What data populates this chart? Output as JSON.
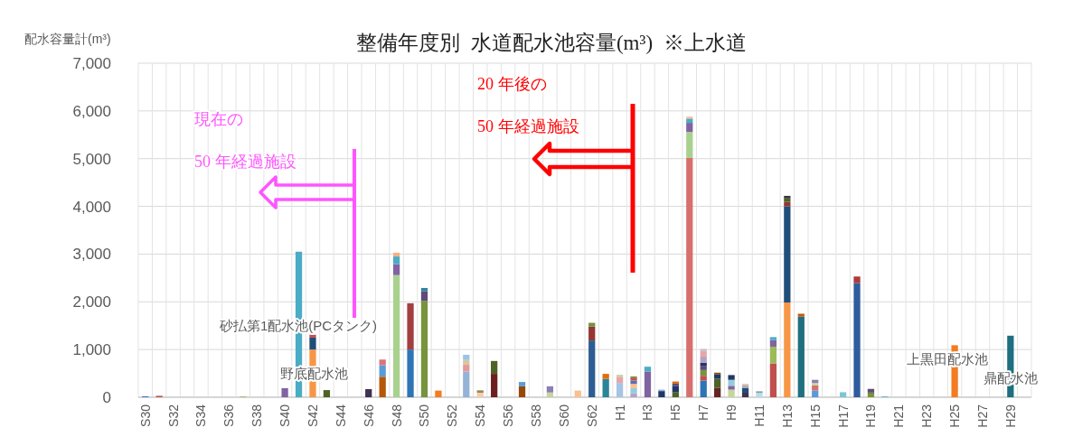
{
  "chart_data": {
    "type": "bar",
    "stacked": true,
    "title": "整備年度別  水道配水池容量(m³)  ※上水道",
    "ylabel": "配水容量計(m³)",
    "categories": [
      "S30",
      null,
      "S32",
      null,
      "S34",
      null,
      "S36",
      null,
      "S38",
      null,
      "S40",
      null,
      "S42",
      null,
      "S44",
      null,
      "S46",
      null,
      "S48",
      null,
      "S50",
      null,
      "S52",
      null,
      "S54",
      null,
      "S56",
      null,
      "S58",
      null,
      "S60",
      null,
      "S62",
      null,
      "H1",
      null,
      "H3",
      null,
      "H5",
      null,
      "H7",
      null,
      "H9",
      null,
      "H11",
      null,
      "H13",
      null,
      "H15",
      null,
      "H17",
      null,
      "H19",
      null,
      "H21",
      null,
      "H23",
      null,
      "H25",
      null,
      "H27",
      null,
      "H29",
      null
    ],
    "ylim": [
      0,
      7000
    ],
    "yticks": [
      0,
      {
        "value": 1000,
        "label": "1,000"
      },
      {
        "value": 2000,
        "label": "2,000"
      },
      {
        "value": 3000,
        "label": "3,000"
      },
      {
        "value": 4000,
        "label": "4,000"
      },
      {
        "value": 5000,
        "label": "5,000"
      },
      {
        "value": 6000,
        "label": "6,000"
      },
      {
        "value": 7000,
        "label": "7,000"
      }
    ],
    "grid": true,
    "series": [
      {
        "values": [
          20,
          30,
          null,
          null,
          null,
          null,
          null,
          15,
          null,
          null,
          190,
          3050,
          1000,
          150,
          null,
          null,
          170,
          430,
          2560,
          1000,
          2020,
          140,
          null,
          540,
          95,
          490,
          null,
          230,
          null,
          100,
          null,
          140,
          1190,
          385,
          300,
          80,
          540,
          130,
          110,
          5015,
          350,
          200,
          160,
          95,
          90,
          710,
          1985,
          1690,
          145,
          null,
          105,
          2395,
          80,
          15,
          null,
          null,
          null,
          null,
          1090,
          null,
          null,
          null,
          1290,
          null
        ],
        "colors": [
          "#4472c4",
          "#c0504d",
          null,
          null,
          null,
          null,
          null,
          "#9bbb59",
          null,
          null,
          "#8064a2",
          "#4bacc6",
          "#f79646",
          "#4f6228",
          null,
          null,
          "#3f3151",
          "#b65708",
          "#a9d18e",
          "#2e75b6",
          "#77933c",
          "#f47b20",
          null,
          "#95b3d7",
          "#f8cbad",
          "#6d1f1f",
          null,
          "#974806",
          null,
          "#c3d69b",
          null,
          "#fac090",
          "#2e5c93",
          "#2b8599",
          "#a6c4e4",
          "#b3a2c7",
          "#8064a2",
          "#1f3864",
          "#4f6228",
          "#d7706c",
          "#2e75b6",
          "#632523",
          "#c3d69b",
          "#3f3151",
          "#b7dee8",
          "#c0504d",
          "#f79646",
          "#1f6f80",
          "#5b9bd5",
          null,
          "#78c8d2",
          "#2e5c9e",
          "#77933c",
          "#4bacc6",
          null,
          null,
          null,
          null,
          "#f47b20",
          null,
          null,
          null,
          "#1f6f80",
          null
        ]
      },
      {
        "values": [
          null,
          null,
          null,
          null,
          null,
          null,
          null,
          null,
          null,
          null,
          null,
          null,
          250,
          null,
          null,
          null,
          null,
          240,
          230,
          970,
          200,
          null,
          null,
          140,
          50,
          270,
          null,
          90,
          null,
          130,
          null,
          null,
          290,
          105,
          130,
          110,
          100,
          30,
          130,
          545,
          100,
          190,
          80,
          95,
          35,
          350,
          2015,
          60,
          105,
          null,
          null,
          135,
          30,
          null,
          null,
          null,
          null,
          null,
          null,
          null,
          null,
          null,
          null,
          null
        ],
        "colors": [
          null,
          null,
          null,
          null,
          null,
          null,
          null,
          null,
          null,
          null,
          null,
          null,
          "#1f4e79",
          null,
          null,
          null,
          null,
          "#5b9bd5",
          "#8064a2",
          "#a33f3f",
          "#604a7b",
          null,
          null,
          "#e6999a",
          "#948a54",
          "#4f6228",
          null,
          "#5b9bd5",
          null,
          "#8c7fb5",
          null,
          null,
          "#943634",
          "#e46c0a",
          "#e6a7a8",
          "#93cddd",
          "#4bacc6",
          "#8eb4e3",
          "#1f3864",
          "#a9d18e",
          "#c0504d",
          "#4f6228",
          "#8064a2",
          "#1f4e79",
          "#8c9ba8",
          "#9bbb59",
          "#1f4e79",
          "#c55a11",
          "#d7706c",
          null,
          null,
          "#b03a3a",
          "#4f6228",
          null,
          null,
          null,
          null,
          null,
          null,
          null,
          null,
          null,
          null,
          null
        ]
      },
      {
        "values": [
          null,
          null,
          null,
          null,
          null,
          null,
          null,
          null,
          null,
          null,
          null,
          null,
          60,
          null,
          null,
          null,
          null,
          120,
          160,
          null,
          70,
          null,
          null,
          100,
          null,
          null,
          null,
          null,
          null,
          null,
          null,
          null,
          80,
          null,
          40,
          90,
          null,
          null,
          45,
          190,
          120,
          95,
          125,
          55,
          null,
          140,
          95,
          null,
          50,
          null,
          null,
          null,
          65,
          null,
          null,
          null,
          null,
          null,
          null,
          null,
          null,
          null,
          null,
          null
        ],
        "colors": [
          null,
          null,
          null,
          null,
          null,
          null,
          null,
          null,
          null,
          null,
          null,
          null,
          "#c0504d",
          null,
          null,
          null,
          null,
          "#d9757b",
          "#4bacc6",
          null,
          "#31859c",
          null,
          null,
          "#d7c7a0",
          null,
          null,
          null,
          null,
          null,
          null,
          null,
          null,
          "#76923c",
          null,
          "#c3d69b",
          "#fac090",
          null,
          null,
          "#604a7b",
          "#8064a2",
          "#77933c",
          "#1f3864",
          "#93cddd",
          "#b3a2c7",
          null,
          "#8064a2",
          "#943634",
          null,
          "#c3d69b",
          null,
          null,
          null,
          "#604a7b",
          null,
          null,
          null,
          null,
          null,
          null,
          null,
          null,
          null,
          null,
          null
        ]
      },
      {
        "values": [
          null,
          null,
          null,
          null,
          null,
          null,
          null,
          null,
          null,
          null,
          null,
          null,
          null,
          null,
          null,
          null,
          null,
          null,
          80,
          null,
          null,
          null,
          null,
          110,
          null,
          null,
          null,
          null,
          null,
          null,
          null,
          null,
          null,
          null,
          null,
          70,
          null,
          null,
          45,
          90,
          90,
          30,
          100,
          35,
          null,
          60,
          85,
          null,
          65,
          null,
          null,
          null,
          null,
          null,
          null,
          null,
          null,
          null,
          null,
          null,
          null,
          null,
          null,
          null
        ],
        "colors": [
          null,
          null,
          null,
          null,
          null,
          null,
          null,
          null,
          null,
          null,
          null,
          null,
          null,
          null,
          null,
          null,
          null,
          null,
          "#f4b183",
          null,
          null,
          null,
          null,
          "#9dc3e6",
          null,
          null,
          null,
          null,
          null,
          null,
          null,
          null,
          null,
          null,
          null,
          "#5b6fb5",
          null,
          null,
          "#e46c0a",
          "#4bacc6",
          "#604a7b",
          "#974806",
          "#1f3864",
          "#d7c7a0",
          null,
          "#4bacc6",
          "#4f6228",
          null,
          "#8c7fb5",
          null,
          null,
          null,
          null,
          null,
          null,
          null,
          null,
          null,
          null,
          null,
          null,
          null,
          null,
          null
        ]
      },
      {
        "values": [
          null,
          null,
          null,
          null,
          null,
          null,
          null,
          null,
          null,
          null,
          null,
          null,
          null,
          null,
          null,
          null,
          null,
          null,
          null,
          null,
          null,
          null,
          null,
          null,
          null,
          null,
          null,
          null,
          null,
          null,
          null,
          null,
          null,
          null,
          null,
          50,
          null,
          null,
          null,
          40,
          65,
          null,
          null,
          null,
          null,
          null,
          40,
          null,
          null,
          null,
          null,
          null,
          null,
          null,
          null,
          null,
          null,
          null,
          null,
          null,
          null,
          null,
          null,
          null
        ],
        "colors": [
          null,
          null,
          null,
          null,
          null,
          null,
          null,
          null,
          null,
          null,
          null,
          null,
          null,
          null,
          null,
          null,
          null,
          null,
          null,
          null,
          null,
          null,
          null,
          null,
          null,
          null,
          null,
          null,
          null,
          null,
          null,
          null,
          null,
          null,
          null,
          "#c0504d",
          null,
          null,
          null,
          "#fac090",
          "#1f3864",
          null,
          null,
          null,
          null,
          null,
          "#3f3151",
          null,
          null,
          null,
          null,
          null,
          null,
          null,
          null,
          null,
          null,
          null,
          null,
          null,
          null,
          null,
          null,
          null
        ]
      },
      {
        "values": [
          null,
          null,
          null,
          null,
          null,
          null,
          null,
          null,
          null,
          null,
          null,
          null,
          null,
          null,
          null,
          null,
          null,
          null,
          null,
          null,
          null,
          null,
          null,
          null,
          null,
          null,
          null,
          null,
          null,
          null,
          null,
          null,
          null,
          null,
          null,
          35,
          null,
          null,
          null,
          null,
          125,
          null,
          null,
          null,
          null,
          null,
          null,
          null,
          null,
          null,
          null,
          null,
          null,
          null,
          null,
          null,
          null,
          null,
          null,
          null,
          null,
          null,
          null,
          null
        ],
        "colors": [
          null,
          null,
          null,
          null,
          null,
          null,
          null,
          null,
          null,
          null,
          null,
          null,
          null,
          null,
          null,
          null,
          null,
          null,
          null,
          null,
          null,
          null,
          null,
          null,
          null,
          null,
          null,
          null,
          null,
          null,
          null,
          null,
          null,
          null,
          null,
          "#7f7f3f",
          null,
          null,
          null,
          null,
          "#b3a2c7",
          null,
          null,
          null,
          null,
          null,
          null,
          null,
          null,
          null,
          null,
          null,
          null,
          null,
          null,
          null,
          null,
          null,
          null,
          null,
          null,
          null,
          null,
          null
        ]
      },
      {
        "values": [
          null,
          null,
          null,
          null,
          null,
          null,
          null,
          null,
          null,
          null,
          null,
          null,
          null,
          null,
          null,
          null,
          null,
          null,
          null,
          null,
          null,
          null,
          null,
          null,
          null,
          null,
          null,
          null,
          null,
          null,
          null,
          null,
          null,
          null,
          null,
          null,
          null,
          null,
          null,
          null,
          125,
          null,
          null,
          null,
          null,
          null,
          null,
          null,
          null,
          null,
          null,
          null,
          null,
          null,
          null,
          null,
          null,
          null,
          null,
          null,
          null,
          null,
          null,
          null
        ],
        "colors": [
          null,
          null,
          null,
          null,
          null,
          null,
          null,
          null,
          null,
          null,
          null,
          null,
          null,
          null,
          null,
          null,
          null,
          null,
          null,
          null,
          null,
          null,
          null,
          null,
          null,
          null,
          null,
          null,
          null,
          null,
          null,
          null,
          null,
          null,
          null,
          null,
          null,
          null,
          null,
          null,
          "#e6a7a8",
          null,
          null,
          null,
          null,
          null,
          null,
          null,
          null,
          null,
          null,
          null,
          null,
          null,
          null,
          null,
          null,
          null,
          null,
          null,
          null,
          null,
          null,
          null
        ]
      },
      {
        "values": [
          null,
          null,
          null,
          null,
          null,
          null,
          null,
          null,
          null,
          null,
          null,
          null,
          null,
          null,
          null,
          null,
          null,
          null,
          null,
          null,
          null,
          null,
          null,
          null,
          null,
          null,
          null,
          null,
          null,
          null,
          null,
          null,
          null,
          null,
          null,
          null,
          null,
          null,
          null,
          null,
          35,
          null,
          null,
          null,
          null,
          null,
          null,
          null,
          null,
          null,
          null,
          null,
          null,
          null,
          null,
          null,
          null,
          null,
          null,
          null,
          null,
          null,
          null,
          null
        ],
        "colors": [
          null,
          null,
          null,
          null,
          null,
          null,
          null,
          null,
          null,
          null,
          null,
          null,
          null,
          null,
          null,
          null,
          null,
          null,
          null,
          null,
          null,
          null,
          null,
          null,
          null,
          null,
          null,
          null,
          null,
          null,
          null,
          null,
          null,
          null,
          null,
          null,
          null,
          null,
          null,
          null,
          "#b7bfc8",
          null,
          null,
          null,
          null,
          null,
          null,
          null,
          null,
          null,
          null,
          null,
          null,
          null,
          null,
          null,
          null,
          null,
          null,
          null,
          null,
          null,
          null,
          null
        ]
      }
    ],
    "annotations": [
      "現在の",
      "50 年経過施設",
      "20 年後の",
      "50 年経過施設",
      "砂払第1配水池(PCタンク)",
      "野底配水池",
      "上黒田配水池",
      "鼎配水池"
    ]
  }
}
